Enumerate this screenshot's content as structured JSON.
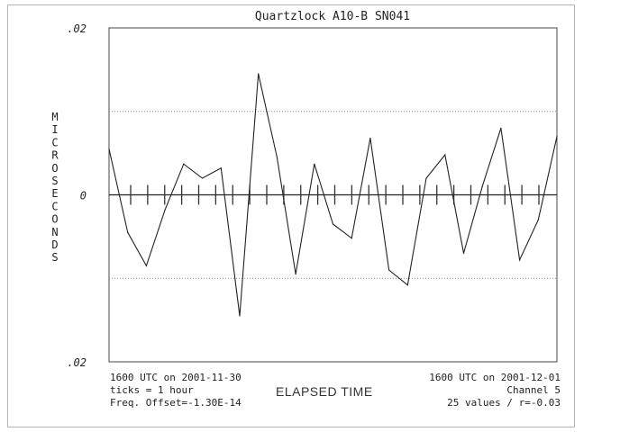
{
  "chart_data": {
    "type": "line",
    "title": "Quartzlock A10-B SN041",
    "ylabel": "MICROSECONDS",
    "xlabel": "ELAPSED TIME",
    "y_tick_labels": [
      ".02",
      "0",
      ".02"
    ],
    "ylim": [
      -0.02,
      0.02
    ],
    "grid": "dotted horizontal at +/-0.01",
    "x": [
      1,
      2,
      3,
      4,
      5,
      6,
      7,
      8,
      9,
      10,
      11,
      12,
      13,
      14,
      15,
      16,
      17,
      18,
      19,
      20,
      21,
      22,
      23,
      24,
      25
    ],
    "values": [
      0.0055,
      -0.0045,
      -0.0085,
      -0.0018,
      0.0037,
      0.002,
      0.0032,
      -0.0145,
      0.0145,
      0.0045,
      -0.0095,
      0.0037,
      -0.0035,
      -0.0052,
      0.0068,
      -0.009,
      -0.0108,
      0.002,
      0.0048,
      -0.007,
      0.001,
      0.008,
      -0.0078,
      -0.003,
      0.007
    ],
    "x_ticks": 25
  },
  "footer": {
    "left_lines": [
      "1600 UTC on 2001-11-30",
      "ticks = 1 hour",
      "Freq. Offset=-1.30E-14"
    ],
    "right_lines": [
      "1600 UTC on 2001-12-01",
      "Channel 5",
      "25 values / r=-0.03"
    ]
  }
}
